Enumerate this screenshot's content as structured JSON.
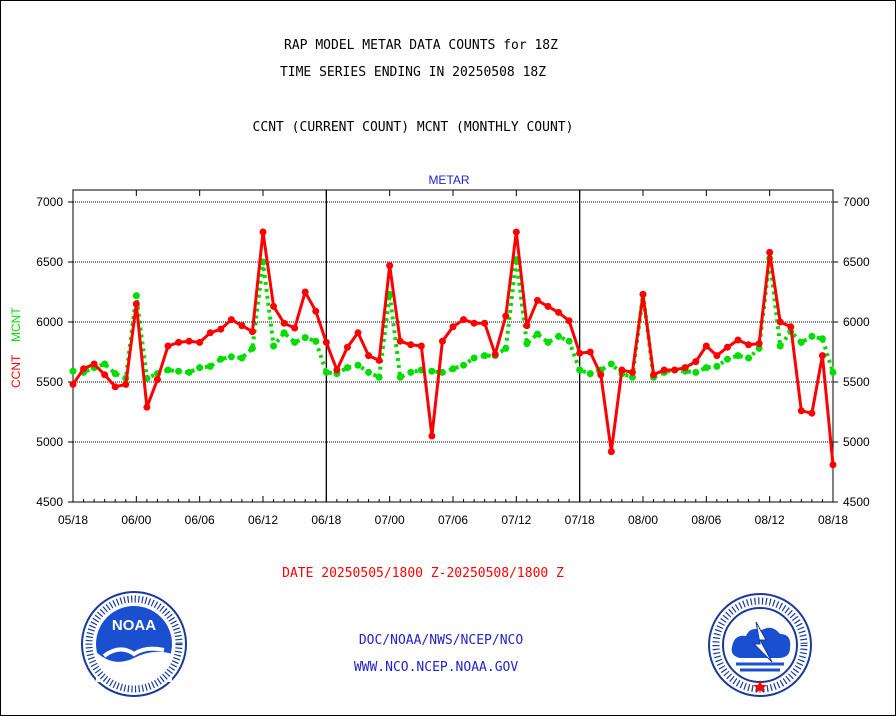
{
  "header": {
    "title_line1": "RAP MODEL METAR DATA COUNTS for 18Z",
    "title_line2": "TIME SERIES ENDING IN 20250508 18Z",
    "subtitle": "CCNT (CURRENT COUNT) MCNT (MONTHLY COUNT)"
  },
  "footer": {
    "date_range": "DATE 20250505/1800 Z-20250508/1800 Z",
    "org_line": "DOC/NOAA/NWS/NCEP/NCO",
    "website": "WWW.NCO.NCEP.NOAA.GOV"
  },
  "logos": {
    "noaa": {
      "text": "NOAA",
      "ring_text": "NATIONAL OCEANIC AND ATMOSPHERIC ADMINISTRATION · U.S. DEPARTMENT OF COMMERCE"
    },
    "nws": {
      "ring_text": "NATIONAL WEATHER SERVICE"
    }
  },
  "colors": {
    "ccnt": "#ff0000",
    "mcnt": "#00dd00",
    "panel_label": "#2222cc"
  },
  "chart_data": {
    "type": "line",
    "panel_label": "METAR",
    "ylabel_left": {
      "ccnt": "CCNT",
      "mcnt": "MCNT"
    },
    "ylim": [
      4500,
      7100
    ],
    "y_ticks": [
      4500,
      5000,
      5500,
      6000,
      6500,
      7000
    ],
    "x_tick_labels": [
      "05/18",
      "06/00",
      "06/06",
      "06/12",
      "06/18",
      "07/00",
      "07/06",
      "07/12",
      "07/18",
      "08/00",
      "08/06",
      "08/12",
      "08/18"
    ],
    "x_range_hours": [
      0,
      72
    ],
    "day_dividers_hours": [
      24,
      48
    ],
    "grid": true,
    "series": [
      {
        "name": "CCNT",
        "style": "solid",
        "values": [
          5480,
          5610,
          5650,
          5560,
          5460,
          5480,
          6150,
          5290,
          5520,
          5800,
          5830,
          5840,
          5830,
          5910,
          5940,
          6020,
          5970,
          5920,
          6750,
          6130,
          5990,
          5950,
          6250,
          6090,
          5830,
          5600,
          5790,
          5910,
          5720,
          5680,
          6470,
          5840,
          5810,
          5800,
          5050,
          5840,
          5960,
          6020,
          5990,
          5990,
          5730,
          6050,
          6750,
          5970,
          6180,
          6130,
          6080,
          6010,
          5740,
          5750,
          5560,
          4920,
          5600,
          5580,
          6230,
          5560,
          5600,
          5600,
          5620,
          5670,
          5800,
          5720,
          5790,
          5850,
          5810,
          5820,
          6580,
          6000,
          5960,
          5260,
          5240,
          5720,
          4810
        ]
      },
      {
        "name": "MCNT",
        "style": "dotted",
        "values": [
          5590,
          5580,
          5620,
          5650,
          5570,
          5530,
          6220,
          5530,
          5570,
          5600,
          5590,
          5580,
          5620,
          5630,
          5690,
          5710,
          5700,
          5780,
          6500,
          5800,
          5910,
          5830,
          5870,
          5840,
          5580,
          5570,
          5620,
          5640,
          5580,
          5540,
          6230,
          5540,
          5580,
          5600,
          5590,
          5580,
          5610,
          5640,
          5700,
          5720,
          5720,
          5780,
          6520,
          5820,
          5900,
          5830,
          5880,
          5840,
          5600,
          5570,
          5600,
          5650,
          5570,
          5540,
          6230,
          5540,
          5580,
          5600,
          5590,
          5580,
          5620,
          5630,
          5690,
          5720,
          5700,
          5780,
          6530,
          5800,
          5920,
          5830,
          5880,
          5860,
          5580
        ]
      }
    ]
  }
}
